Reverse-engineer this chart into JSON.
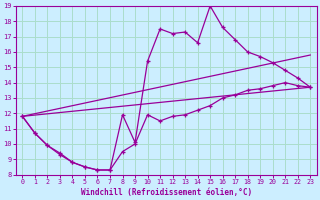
{
  "xlabel": "Windchill (Refroidissement éolien,°C)",
  "ylabel": "",
  "bg_color": "#cceeff",
  "line_color": "#990099",
  "grid_color": "#aaddcc",
  "xlim": [
    -0.5,
    23.5
  ],
  "ylim": [
    8,
    19
  ],
  "xticks": [
    0,
    1,
    2,
    3,
    4,
    5,
    6,
    7,
    8,
    9,
    10,
    11,
    12,
    13,
    14,
    15,
    16,
    17,
    18,
    19,
    20,
    21,
    22,
    23
  ],
  "yticks": [
    8,
    9,
    10,
    11,
    12,
    13,
    14,
    15,
    16,
    17,
    18,
    19
  ],
  "series_upper": {
    "x": [
      0,
      1,
      2,
      3,
      4,
      5,
      6,
      7,
      8,
      9,
      10,
      11,
      12,
      13,
      14,
      15,
      16,
      17,
      18,
      19,
      20,
      21,
      22,
      23
    ],
    "y": [
      11.8,
      10.7,
      9.9,
      9.4,
      8.8,
      8.5,
      8.3,
      8.3,
      11.9,
      10.1,
      15.4,
      17.5,
      17.2,
      17.3,
      16.6,
      19.0,
      17.6,
      16.8,
      16.0,
      15.7,
      15.3,
      14.8,
      14.3,
      13.7
    ]
  },
  "series_lower": {
    "x": [
      0,
      1,
      2,
      3,
      4,
      5,
      6,
      7,
      8,
      9,
      10,
      11,
      12,
      13,
      14,
      15,
      16,
      17,
      18,
      19,
      20,
      21,
      22,
      23
    ],
    "y": [
      11.8,
      10.7,
      9.9,
      9.3,
      8.8,
      8.5,
      8.3,
      8.3,
      9.5,
      10.0,
      11.9,
      11.5,
      11.8,
      11.9,
      12.2,
      12.5,
      13.0,
      13.2,
      13.5,
      13.6,
      13.8,
      14.0,
      13.8,
      13.7
    ]
  },
  "series_trend1": {
    "x": [
      0,
      23
    ],
    "y": [
      11.8,
      15.8
    ]
  },
  "series_trend2": {
    "x": [
      0,
      23
    ],
    "y": [
      11.8,
      13.7
    ]
  }
}
